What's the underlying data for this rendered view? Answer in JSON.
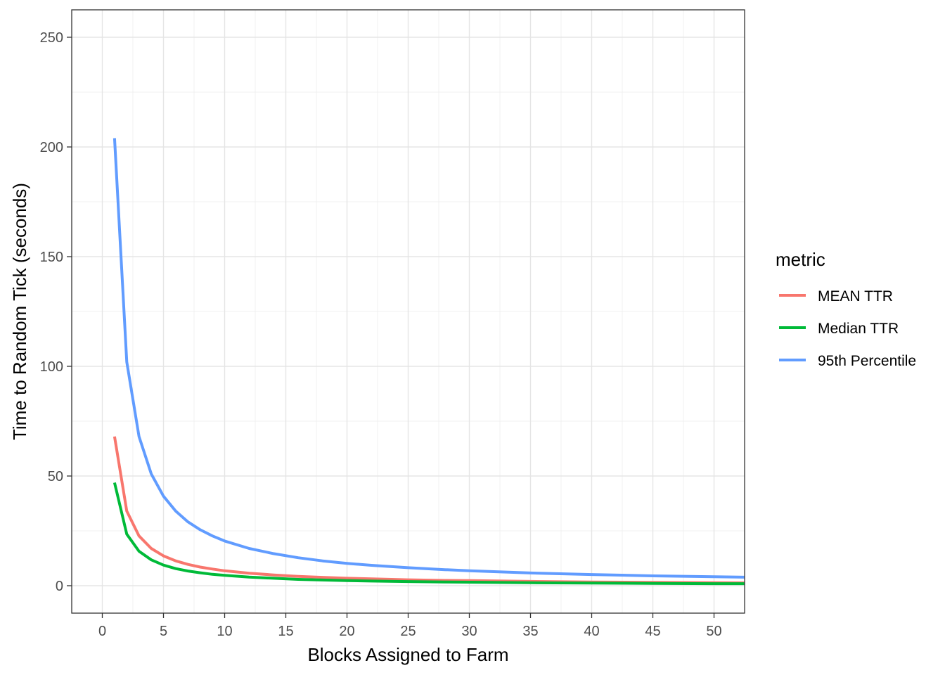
{
  "chart_data": {
    "type": "line",
    "title": "",
    "xlabel": "Blocks Assigned to Farm",
    "ylabel": "Time to Random Tick (seconds)",
    "xlim": [
      -2.5,
      52.5
    ],
    "ylim": [
      -12.5,
      262.5
    ],
    "x_ticks": [
      0,
      5,
      10,
      15,
      20,
      25,
      30,
      35,
      40,
      45,
      50
    ],
    "x_tick_labels": [
      "0",
      "5",
      "10",
      "15",
      "20",
      "25",
      "30",
      "35",
      "40",
      "45",
      "50"
    ],
    "y_ticks": [
      0,
      50,
      100,
      150,
      200,
      250
    ],
    "y_tick_labels": [
      "0",
      "50",
      "100",
      "150",
      "200",
      "250"
    ],
    "grid": true,
    "legend": {
      "title": "metric",
      "position": "right"
    },
    "x": [
      1,
      2,
      3,
      4,
      5,
      6,
      7,
      8,
      9,
      10,
      12,
      14,
      16,
      18,
      20,
      22,
      25,
      28,
      30,
      35,
      40,
      45,
      50,
      53
    ],
    "series": [
      {
        "name": "MEAN TTR",
        "color": "#F8766D",
        "values": [
          68,
          34,
          22.7,
          17,
          13.6,
          11.3,
          9.7,
          8.5,
          7.6,
          6.8,
          5.7,
          4.9,
          4.25,
          3.8,
          3.4,
          3.1,
          2.7,
          2.4,
          2.3,
          1.95,
          1.7,
          1.5,
          1.36,
          1.28
        ]
      },
      {
        "name": "Median TTR",
        "color": "#00BA38",
        "values": [
          47,
          23.5,
          15.7,
          11.8,
          9.4,
          7.8,
          6.7,
          5.9,
          5.2,
          4.7,
          3.9,
          3.4,
          2.9,
          2.6,
          2.35,
          2.1,
          1.9,
          1.7,
          1.6,
          1.35,
          1.2,
          1.05,
          0.94,
          0.89
        ]
      },
      {
        "name": "95th Percentile",
        "color": "#619CFF",
        "values": [
          204,
          102,
          68,
          51,
          40.8,
          34,
          29.1,
          25.5,
          22.7,
          20.4,
          17,
          14.6,
          12.75,
          11.3,
          10.2,
          9.3,
          8.2,
          7.3,
          6.8,
          5.8,
          5.1,
          4.5,
          4.1,
          3.85
        ]
      }
    ]
  }
}
